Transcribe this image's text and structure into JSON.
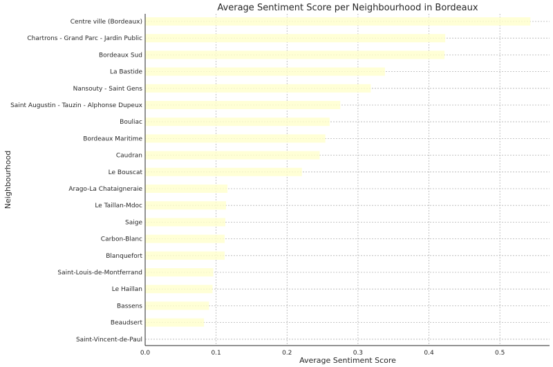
{
  "chart_data": {
    "type": "bar",
    "orientation": "horizontal",
    "title": "Average Sentiment Score per Neighbourhood in Bordeaux",
    "xlabel": "Average Sentiment Score",
    "ylabel": "Neighbourhood",
    "xlim": [
      0,
      0.57
    ],
    "xticks": [
      "0.0",
      "0.1",
      "0.2",
      "0.3",
      "0.4",
      "0.5"
    ],
    "grid": true,
    "bar_color": "#ffffcc",
    "categories": [
      "Centre ville (Bordeaux)",
      "Chartrons - Grand Parc - Jardin Public",
      "Bordeaux Sud",
      "La Bastide",
      "Nansouty - Saint Gens",
      "Saint Augustin - Tauzin - Alphonse Dupeux",
      "Bouliac",
      "Bordeaux Maritime",
      "Caudran",
      "Le Bouscat",
      "Arago-La Chataigneraie",
      "Le Taillan-Mdoc",
      "Saige",
      "Carbon-Blanc",
      "Blanquefort",
      "Saint-Louis-de-Montferrand",
      "Le Haillan",
      "Bassens",
      "Beaudsert",
      "Saint-Vincent-de-Paul"
    ],
    "values": [
      0.543,
      0.423,
      0.422,
      0.338,
      0.318,
      0.275,
      0.26,
      0.254,
      0.246,
      0.221,
      0.116,
      0.114,
      0.113,
      0.112,
      0.112,
      0.096,
      0.095,
      0.09,
      0.083,
      0.0
    ]
  }
}
